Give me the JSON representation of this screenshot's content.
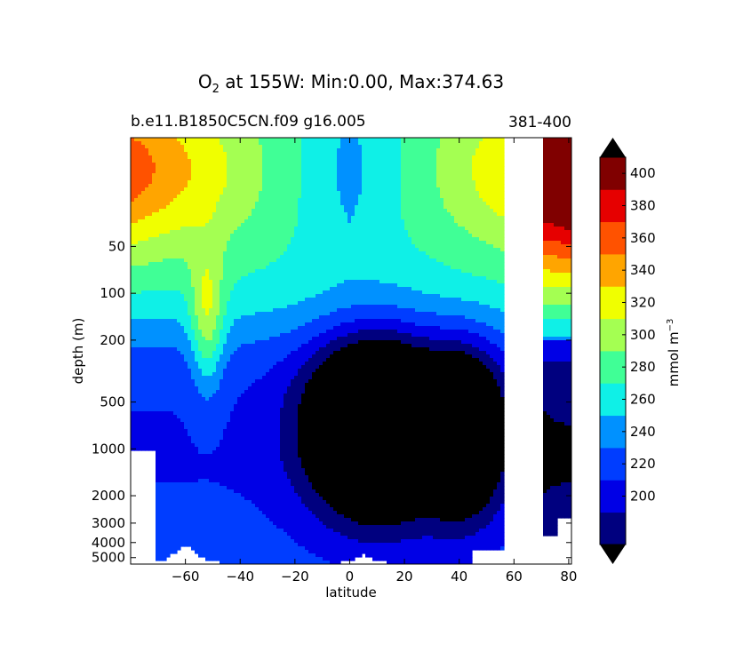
{
  "chart_data": {
    "type": "contourf",
    "title_main": "O",
    "title_sub": "2",
    "title_rest": "at 155W: Min:0.00, Max:374.63",
    "subtitle_left": "b.e11.B1850C5CN.f09 g16.005",
    "subtitle_right": "381-400",
    "xlabel": "latitude",
    "ylabel": "depth (m)",
    "xlim": [
      -80,
      81
    ],
    "ylim": [
      5500,
      10
    ],
    "yscale": "log",
    "xticks": [
      {
        "value": -60,
        "label": "−60"
      },
      {
        "value": -40,
        "label": "−40"
      },
      {
        "value": -20,
        "label": "−20"
      },
      {
        "value": 0,
        "label": "0"
      },
      {
        "value": 20,
        "label": "20"
      },
      {
        "value": 40,
        "label": "40"
      },
      {
        "value": 60,
        "label": "60"
      },
      {
        "value": 80,
        "label": "80"
      }
    ],
    "yticks": [
      {
        "value": 50,
        "label": "50"
      },
      {
        "value": 100,
        "label": "100"
      },
      {
        "value": 200,
        "label": "200"
      },
      {
        "value": 500,
        "label": "500"
      },
      {
        "value": 1000,
        "label": "1000"
      },
      {
        "value": 2000,
        "label": "2000"
      },
      {
        "value": 3000,
        "label": "3000"
      },
      {
        "value": 4000,
        "label": "4000"
      },
      {
        "value": 5000,
        "label": "5000"
      }
    ],
    "colorbar": {
      "label": "mmol m",
      "label_sup": "−3",
      "levels": [
        180,
        200,
        220,
        240,
        260,
        280,
        300,
        320,
        340,
        360,
        380,
        400,
        420
      ],
      "tick_labels": [
        "200",
        "220",
        "240",
        "260",
        "280",
        "300",
        "320",
        "340",
        "360",
        "380",
        "400"
      ],
      "tick_values": [
        200,
        220,
        240,
        260,
        280,
        300,
        320,
        340,
        360,
        380,
        400
      ],
      "colors": [
        "#00007f",
        "#0000e6",
        "#003dff",
        "#0091ff",
        "#0ff0e7",
        "#40ff96",
        "#a4ff52",
        "#f0ff00",
        "#ffa500",
        "#ff5200",
        "#e60000",
        "#800000"
      ],
      "under_color": "#000000",
      "over_color": "#000000"
    },
    "fill_under": "#000000"
  }
}
